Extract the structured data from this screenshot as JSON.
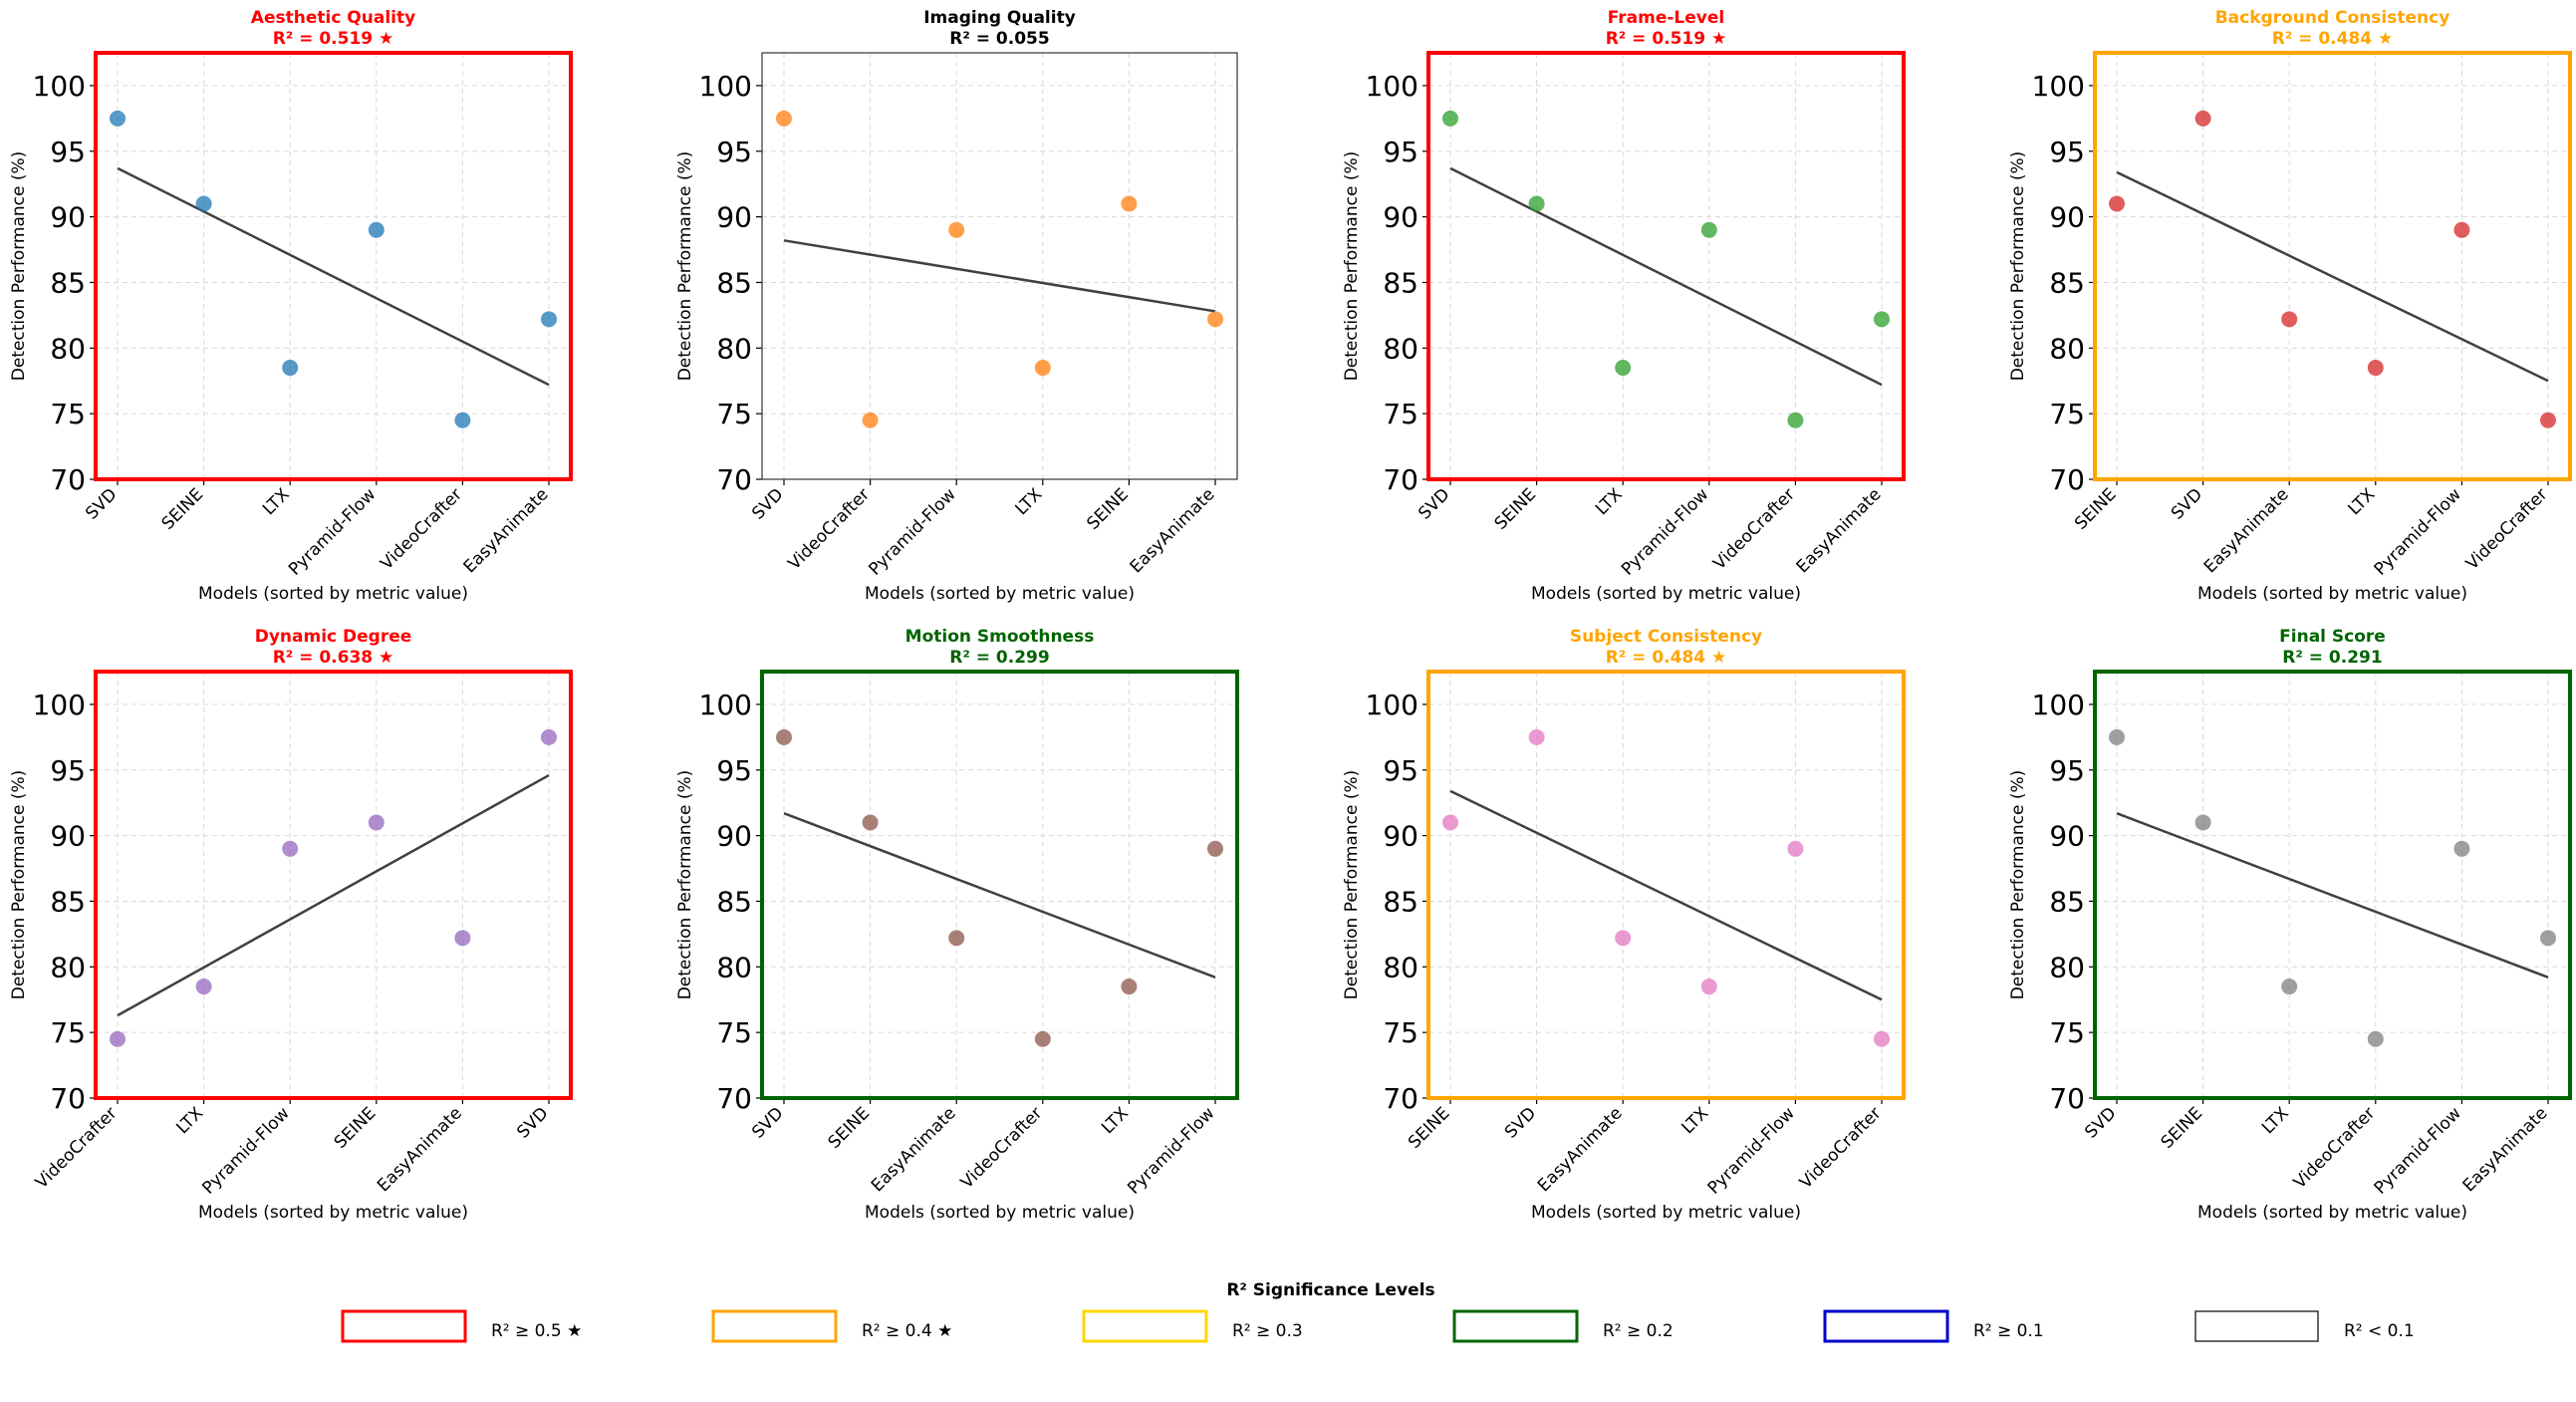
{
  "chart_data": [
    {
      "type": "scatter",
      "title": "Aesthetic Quality",
      "subtitle": "R² = 0.519 ★",
      "title_color": "#ff0000",
      "border_color": "#ff0000",
      "point_color": "#1f77b4",
      "categories": [
        "SVD",
        "SEINE",
        "LTX",
        "Pyramid-Flow",
        "VideoCrafter",
        "EasyAnimate"
      ],
      "values": [
        97.5,
        91.0,
        78.5,
        89.0,
        74.5,
        82.2
      ],
      "trend": [
        93.7,
        77.2
      ],
      "xlabel": "Models (sorted by metric value)",
      "ylabel": "Detection Performance (%)",
      "ylim": [
        70,
        102.5
      ],
      "yticks": [
        70,
        75,
        80,
        85,
        90,
        95,
        100
      ],
      "grid": true
    },
    {
      "type": "scatter",
      "title": "Imaging Quality",
      "subtitle": "R² = 0.055",
      "title_color": "#000000",
      "border_color": "#333333",
      "point_color": "#ff7f0e",
      "categories": [
        "SVD",
        "VideoCrafter",
        "Pyramid-Flow",
        "LTX",
        "SEINE",
        "EasyAnimate"
      ],
      "values": [
        97.5,
        74.5,
        89.0,
        78.5,
        91.0,
        82.2
      ],
      "trend": [
        88.2,
        82.8
      ],
      "xlabel": "Models (sorted by metric value)",
      "ylabel": "Detection Performance (%)",
      "ylim": [
        70,
        102.5
      ],
      "yticks": [
        70,
        75,
        80,
        85,
        90,
        95,
        100
      ],
      "grid": true
    },
    {
      "type": "scatter",
      "title": "Frame-Level",
      "subtitle": "R² = 0.519 ★",
      "title_color": "#ff0000",
      "border_color": "#ff0000",
      "point_color": "#2ca02c",
      "categories": [
        "SVD",
        "SEINE",
        "LTX",
        "Pyramid-Flow",
        "VideoCrafter",
        "EasyAnimate"
      ],
      "values": [
        97.5,
        91.0,
        78.5,
        89.0,
        74.5,
        82.2
      ],
      "trend": [
        93.7,
        77.2
      ],
      "xlabel": "Models (sorted by metric value)",
      "ylabel": "Detection Performance (%)",
      "ylim": [
        70,
        102.5
      ],
      "yticks": [
        70,
        75,
        80,
        85,
        90,
        95,
        100
      ],
      "grid": true
    },
    {
      "type": "scatter",
      "title": "Background Consistency",
      "subtitle": "R² = 0.484 ★",
      "title_color": "#ffa500",
      "border_color": "#ffa500",
      "point_color": "#d62728",
      "categories": [
        "SEINE",
        "SVD",
        "EasyAnimate",
        "LTX",
        "Pyramid-Flow",
        "VideoCrafter"
      ],
      "values": [
        91.0,
        97.5,
        82.2,
        78.5,
        89.0,
        74.5
      ],
      "trend": [
        93.4,
        77.5
      ],
      "xlabel": "Models (sorted by metric value)",
      "ylabel": "Detection Performance (%)",
      "ylim": [
        70,
        102.5
      ],
      "yticks": [
        70,
        75,
        80,
        85,
        90,
        95,
        100
      ],
      "grid": true
    },
    {
      "type": "scatter",
      "title": "Dynamic Degree",
      "subtitle": "R² = 0.638 ★",
      "title_color": "#ff0000",
      "border_color": "#ff0000",
      "point_color": "#9467bd",
      "categories": [
        "VideoCrafter",
        "LTX",
        "Pyramid-Flow",
        "SEINE",
        "EasyAnimate",
        "SVD"
      ],
      "values": [
        74.5,
        78.5,
        89.0,
        91.0,
        82.2,
        97.5
      ],
      "trend": [
        76.3,
        94.6
      ],
      "xlabel": "Models (sorted by metric value)",
      "ylabel": "Detection Performance (%)",
      "ylim": [
        70,
        102.5
      ],
      "yticks": [
        70,
        75,
        80,
        85,
        90,
        95,
        100
      ],
      "grid": true
    },
    {
      "type": "scatter",
      "title": "Motion Smoothness",
      "subtitle": "R² = 0.299",
      "title_color": "#006400",
      "border_color": "#006400",
      "point_color": "#8c564b",
      "categories": [
        "SVD",
        "SEINE",
        "EasyAnimate",
        "VideoCrafter",
        "LTX",
        "Pyramid-Flow"
      ],
      "values": [
        97.5,
        91.0,
        82.2,
        74.5,
        78.5,
        89.0
      ],
      "trend": [
        91.7,
        79.2
      ],
      "xlabel": "Models (sorted by metric value)",
      "ylabel": "Detection Performance (%)",
      "ylim": [
        70,
        102.5
      ],
      "yticks": [
        70,
        75,
        80,
        85,
        90,
        95,
        100
      ],
      "grid": true
    },
    {
      "type": "scatter",
      "title": "Subject Consistency",
      "subtitle": "R² = 0.484 ★",
      "title_color": "#ffa500",
      "border_color": "#ffa500",
      "point_color": "#e377c2",
      "categories": [
        "SEINE",
        "SVD",
        "EasyAnimate",
        "LTX",
        "Pyramid-Flow",
        "VideoCrafter"
      ],
      "values": [
        91.0,
        97.5,
        82.2,
        78.5,
        89.0,
        74.5
      ],
      "trend": [
        93.4,
        77.5
      ],
      "xlabel": "Models (sorted by metric value)",
      "ylabel": "Detection Performance (%)",
      "ylim": [
        70,
        102.5
      ],
      "yticks": [
        70,
        75,
        80,
        85,
        90,
        95,
        100
      ],
      "grid": true
    },
    {
      "type": "scatter",
      "title": "Final Score",
      "subtitle": "R² = 0.291",
      "title_color": "#006400",
      "border_color": "#006400",
      "point_color": "#7f7f7f",
      "categories": [
        "SVD",
        "SEINE",
        "LTX",
        "VideoCrafter",
        "Pyramid-Flow",
        "EasyAnimate"
      ],
      "values": [
        97.5,
        91.0,
        78.5,
        74.5,
        89.0,
        82.2
      ],
      "trend": [
        91.7,
        79.2
      ],
      "xlabel": "Models (sorted by metric value)",
      "ylabel": "Detection Performance (%)",
      "ylim": [
        70,
        102.5
      ],
      "yticks": [
        70,
        75,
        80,
        85,
        90,
        95,
        100
      ],
      "grid": true
    }
  ],
  "legend": {
    "title": "R² Significance Levels",
    "placement": "bottom-center",
    "items": [
      {
        "label": "R² ≥ 0.5 ★",
        "color": "#ff0000"
      },
      {
        "label": "R² ≥ 0.4 ★",
        "color": "#ffa500"
      },
      {
        "label": "R² ≥ 0.3",
        "color": "#ffd700"
      },
      {
        "label": "R² ≥ 0.2",
        "color": "#006400"
      },
      {
        "label": "R² ≥ 0.1",
        "color": "#0000cd"
      },
      {
        "label": "R² < 0.1",
        "color": "#333333"
      }
    ]
  }
}
